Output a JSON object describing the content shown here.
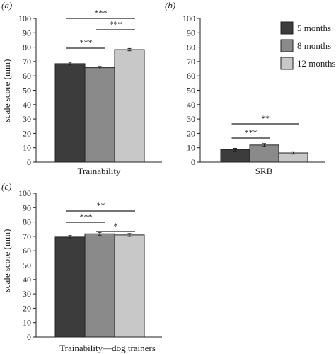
{
  "legend": [
    {
      "label": "5 months",
      "color": "#3c3c3c"
    },
    {
      "label": "8 months",
      "color": "#8a8a8a"
    },
    {
      "label": "12 months",
      "color": "#c8c8c8"
    }
  ],
  "chart_data": [
    {
      "type": "bar",
      "panel_label": "(a)",
      "xlabel": "Trainability",
      "ylabel": "scale score (mm)",
      "ylim": [
        0,
        100
      ],
      "yticks": [
        "0",
        "10",
        "20",
        "30",
        "40",
        "50",
        "60",
        "70",
        "80",
        "90",
        "100"
      ],
      "series": [
        {
          "name": "5 months",
          "values": [
            68.5
          ],
          "error": [
            1.0
          ]
        },
        {
          "name": "8 months",
          "values": [
            65.7
          ],
          "error": [
            0.9
          ]
        },
        {
          "name": "12 months",
          "values": [
            78.3
          ],
          "error": [
            0.8
          ]
        }
      ],
      "significance": [
        {
          "from": 0,
          "to": 2,
          "label": "***"
        },
        {
          "from": 1,
          "to": 2,
          "label": "***"
        },
        {
          "from": 0,
          "to": 1,
          "label": "***"
        }
      ]
    },
    {
      "type": "bar",
      "panel_label": "(b)",
      "xlabel": "SRB",
      "ylabel": "",
      "ylim": [
        0,
        100
      ],
      "yticks": [
        "0",
        "10",
        "20",
        "30",
        "40",
        "50",
        "60",
        "70",
        "80",
        "90",
        "100"
      ],
      "series": [
        {
          "name": "5 months",
          "values": [
            8.6
          ],
          "error": [
            1.0
          ]
        },
        {
          "name": "8 months",
          "values": [
            11.9
          ],
          "error": [
            1.0
          ]
        },
        {
          "name": "12 months",
          "values": [
            6.4
          ],
          "error": [
            0.8
          ]
        }
      ],
      "significance": [
        {
          "from": 0,
          "to": 2,
          "label": "**"
        },
        {
          "from": 0,
          "to": 1,
          "label": "***"
        }
      ]
    },
    {
      "type": "bar",
      "panel_label": "(c)",
      "xlabel": "Trainability—dog trainers",
      "ylabel": "scale score (mm)",
      "ylim": [
        0,
        100
      ],
      "yticks": [
        "0",
        "10",
        "20",
        "30",
        "40",
        "50",
        "60",
        "70",
        "80",
        "90",
        "100"
      ],
      "series": [
        {
          "name": "5 months",
          "values": [
            69.5
          ],
          "error": [
            1.1
          ]
        },
        {
          "name": "8 months",
          "values": [
            71.8
          ],
          "error": [
            1.0
          ]
        },
        {
          "name": "12 months",
          "values": [
            71.0
          ],
          "error": [
            1.0
          ]
        }
      ],
      "significance": [
        {
          "from": 0,
          "to": 2,
          "label": "**"
        },
        {
          "from": 0,
          "to": 1,
          "label": "***"
        },
        {
          "from": 1,
          "to": 2,
          "label": "*"
        }
      ]
    }
  ]
}
